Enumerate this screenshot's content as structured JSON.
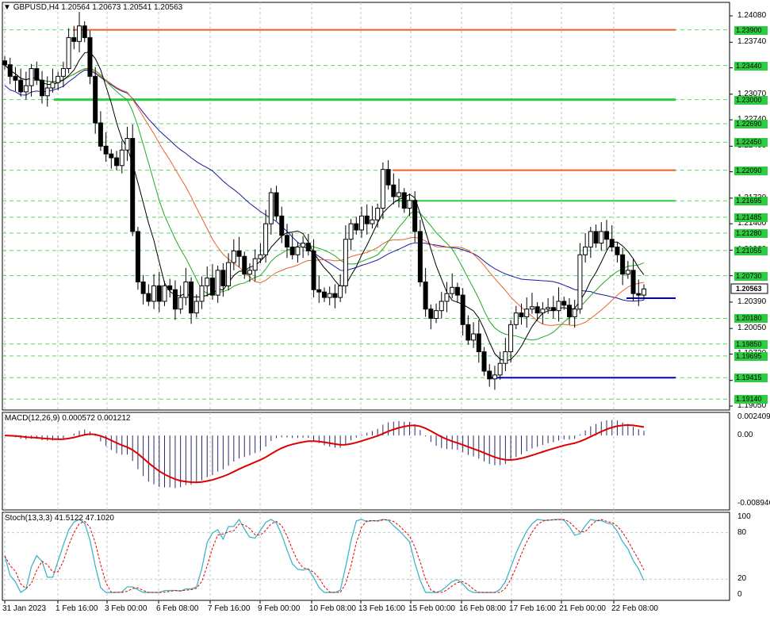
{
  "header": {
    "symbol": "GBPUSD,H4",
    "ohlc": "1.20564 1.20673 1.20541 1.20563"
  },
  "macd_header": "MACD(12,26,9) 0.000572 0.001212",
  "stoch_header": "Stoch(13,3,3) 41.5122 47.1020",
  "colors": {
    "resistance": "#e8622a",
    "support_green": "#2ecc40",
    "support_blue": "#0000cc",
    "ma_black": "#000000",
    "ma_green": "#22aa22",
    "ma_orange": "#e8622a",
    "ma_blue": "#1a1aa0",
    "macd_signal": "#e00000",
    "stoch_main": "#3fb6c8",
    "stoch_signal": "#e00000",
    "grid": "#c6c6c6",
    "price_tag": "#2ecc40",
    "current_price_tag": "#ffffff"
  },
  "chart_data": [
    {
      "type": "candlestick",
      "title": "GBPUSD,H4",
      "ylim": [
        1.1905,
        1.2408
      ],
      "y_ticks": [
        "1.24080",
        "1.23740",
        "1.23410",
        "1.23070",
        "1.22740",
        "1.22400",
        "1.22070",
        "1.21730",
        "1.21400",
        "1.21060",
        "1.20730",
        "1.20390",
        "1.20050",
        "1.19720",
        "1.19380",
        "1.19050"
      ],
      "x_labels": [
        "31 Jan 2023",
        "1 Feb 16:00",
        "3 Feb 00:00",
        "6 Feb 08:00",
        "7 Feb 16:00",
        "9 Feb 00:00",
        "10 Feb 08:00",
        "13 Feb 16:00",
        "15 Feb 00:00",
        "16 Feb 08:00",
        "17 Feb 16:00",
        "21 Feb 00:00",
        "22 Feb 08:00"
      ],
      "levels": [
        {
          "price": 1.239,
          "label": "1.23900",
          "drawn": "resistance"
        },
        {
          "price": 1.2344,
          "label": "1.23440",
          "drawn": "tag"
        },
        {
          "price": 1.23,
          "label": "1.23000",
          "drawn": "support_green"
        },
        {
          "price": 1.2269,
          "label": "1.22690",
          "drawn": "tag"
        },
        {
          "price": 1.2245,
          "label": "1.22450",
          "drawn": "tag"
        },
        {
          "price": 1.2209,
          "label": "1.22090",
          "drawn": "resistance"
        },
        {
          "price": 1.21695,
          "label": "1.21695",
          "drawn": "support_green"
        },
        {
          "price": 1.21485,
          "label": "1.21485",
          "drawn": "tag"
        },
        {
          "price": 1.2128,
          "label": "1.21280",
          "drawn": "tag"
        },
        {
          "price": 1.21055,
          "label": "1.21055",
          "drawn": "tag"
        },
        {
          "price": 1.2073,
          "label": "1.20730",
          "drawn": "tag"
        },
        {
          "price": 1.2018,
          "label": "1.20180",
          "drawn": "tag"
        },
        {
          "price": 1.1985,
          "label": "1.19850",
          "drawn": "tag"
        },
        {
          "price": 1.19695,
          "label": "1.19695",
          "drawn": "tag"
        },
        {
          "price": 1.19415,
          "label": "1.19415",
          "drawn": "support_blue"
        },
        {
          "price": 1.1914,
          "label": "1.19140",
          "drawn": "tag"
        }
      ],
      "current_price": 1.20563,
      "current_price_label": "1.20563",
      "blue_support_upper": 1.2044,
      "closes": [
        1.2345,
        1.233,
        1.2325,
        1.231,
        1.2318,
        1.234,
        1.2325,
        1.2305,
        1.2315,
        1.2322,
        1.233,
        1.234,
        1.238,
        1.2375,
        1.2395,
        1.238,
        1.233,
        1.227,
        1.224,
        1.223,
        1.2225,
        1.2215,
        1.2235,
        1.225,
        1.213,
        1.2065,
        1.205,
        1.204,
        1.206,
        1.204,
        1.206,
        1.2055,
        1.203,
        1.2045,
        1.2065,
        1.2025,
        1.204,
        1.206,
        1.207,
        1.2048,
        1.208,
        1.206,
        1.209,
        1.2105,
        1.2098,
        1.2075,
        1.208,
        1.2095,
        1.21,
        1.214,
        1.218,
        1.215,
        1.2125,
        1.211,
        1.21,
        1.211,
        1.2115,
        1.2105,
        1.2055,
        1.2052,
        1.2045,
        1.205,
        1.2045,
        1.206,
        1.212,
        1.214,
        1.2132,
        1.215,
        1.214,
        1.2145,
        1.216,
        1.221,
        1.219,
        1.2175,
        1.218,
        1.216,
        1.217,
        1.213,
        1.2065,
        1.203,
        1.2018,
        1.2028,
        1.204,
        1.205,
        1.2058,
        1.2048,
        1.201,
        1.199,
        1.1998,
        1.1975,
        1.195,
        1.194,
        1.1945,
        1.196,
        1.1975,
        1.201,
        1.2025,
        1.202,
        1.203,
        1.2033,
        1.2025,
        1.203,
        1.2032,
        1.2028,
        1.204,
        1.2035,
        1.202,
        1.203,
        1.21,
        1.211,
        1.213,
        1.2115,
        1.213,
        1.212,
        1.211,
        1.21,
        1.2075,
        1.208,
        1.205,
        1.2048,
        1.2056
      ]
    },
    {
      "type": "bar",
      "title": "MACD(12,26,9) 0.000572 0.001212",
      "ylim": [
        -0.008946,
        0.002409
      ],
      "y_ticks": [
        "0.002409",
        "0.00",
        "-0.008946"
      ]
    },
    {
      "type": "line",
      "title": "Stoch(13,3,3) 41.5122 47.1020",
      "ylim": [
        0,
        100
      ],
      "y_ticks": [
        "100",
        "80",
        "20",
        "0"
      ]
    }
  ]
}
